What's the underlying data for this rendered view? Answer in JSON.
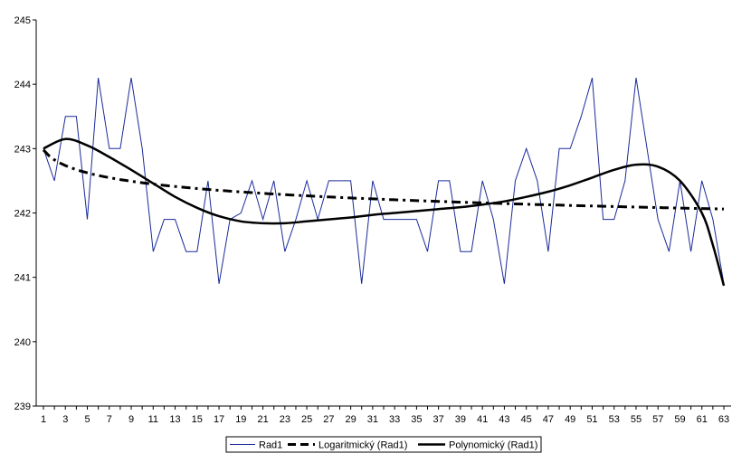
{
  "chart_data": {
    "type": "line",
    "title": "",
    "xlabel": "",
    "ylabel": "",
    "ylim": [
      239,
      245
    ],
    "y_ticks": [
      239,
      240,
      241,
      242,
      243,
      244,
      245
    ],
    "x_ticks": [
      1,
      3,
      5,
      7,
      9,
      11,
      13,
      15,
      17,
      19,
      21,
      23,
      25,
      27,
      29,
      31,
      33,
      35,
      37,
      39,
      41,
      43,
      45,
      47,
      49,
      51,
      53,
      55,
      57,
      59,
      61,
      63
    ],
    "x_range": [
      1,
      63
    ],
    "grid": false,
    "legend_position": "bottom",
    "series": [
      {
        "name": "Rad1",
        "style": "thin",
        "color": "#1a2a99",
        "x": [
          1,
          2,
          3,
          4,
          5,
          6,
          7,
          8,
          9,
          10,
          11,
          12,
          13,
          14,
          15,
          16,
          17,
          18,
          19,
          20,
          21,
          22,
          23,
          24,
          25,
          26,
          27,
          28,
          29,
          30,
          31,
          32,
          33,
          34,
          35,
          36,
          37,
          38,
          39,
          40,
          41,
          42,
          43,
          44,
          45,
          46,
          47,
          48,
          49,
          50,
          51,
          52,
          53,
          54,
          55,
          56,
          57,
          58,
          59,
          60,
          61,
          62,
          63
        ],
        "values": [
          243.0,
          242.5,
          243.5,
          243.5,
          241.9,
          244.1,
          243.0,
          243.0,
          244.1,
          243.0,
          241.4,
          241.9,
          241.9,
          241.4,
          241.4,
          242.5,
          240.9,
          241.9,
          242.0,
          242.5,
          241.9,
          242.5,
          241.4,
          241.9,
          242.5,
          241.9,
          242.5,
          242.5,
          242.5,
          240.9,
          242.5,
          241.9,
          241.9,
          241.9,
          241.9,
          241.4,
          242.5,
          242.5,
          241.4,
          241.4,
          242.5,
          241.9,
          240.9,
          242.5,
          243.0,
          242.5,
          241.4,
          243.0,
          243.0,
          243.5,
          244.1,
          241.9,
          241.9,
          242.5,
          244.1,
          243.0,
          241.9,
          241.4,
          242.5,
          241.4,
          242.5,
          241.9,
          240.9
        ]
      },
      {
        "name": "Logaritmický (Rad1)",
        "style": "dashed",
        "color": "#000000",
        "trend": "logarithmic",
        "a": 242.98,
        "b": -0.2217
      },
      {
        "name": "Polynomický (Rad1)",
        "style": "thick",
        "color": "#000000",
        "trend": "polynomial",
        "x": [
          1,
          3,
          5,
          7,
          9,
          11,
          13,
          15,
          17,
          19,
          21,
          23,
          25,
          27,
          29,
          31,
          33,
          35,
          37,
          39,
          41,
          43,
          45,
          47,
          49,
          51,
          53,
          55,
          57,
          59,
          61,
          62,
          63
        ],
        "values": [
          243.0,
          243.15,
          243.05,
          242.87,
          242.67,
          242.46,
          242.25,
          242.08,
          241.95,
          241.87,
          241.84,
          241.84,
          241.87,
          241.9,
          241.93,
          241.97,
          242.0,
          242.03,
          242.06,
          242.09,
          242.13,
          242.18,
          242.25,
          242.33,
          242.43,
          242.55,
          242.67,
          242.75,
          242.72,
          242.5,
          242.0,
          241.5,
          240.87
        ]
      }
    ]
  }
}
